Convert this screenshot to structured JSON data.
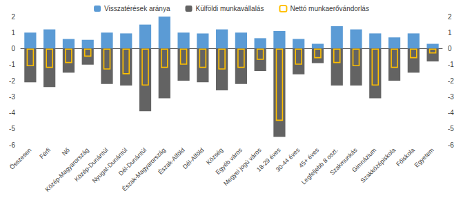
{
  "chart_data": {
    "type": "bar",
    "categories": [
      "Összesen",
      "Férfi",
      "Nő",
      "Közép-Magyarország",
      "Közép-Dunántúl",
      "Nyugat-Dunántúl",
      "Dél-Dunántúl",
      "Észak-Magyarország",
      "Észak-Alföld",
      "Dél-Alföld",
      "Község",
      "Egyéb város",
      "Megyei jogú város",
      "18-29 éves",
      "30-44 éves",
      "45+ éves",
      "Legfeljebb 8 oszt.",
      "Szakmunkás",
      "Gimnázium",
      "Szakközépiskola",
      "Főiskola",
      "Egyetem"
    ],
    "series": [
      {
        "name": "Visszatérések aránya",
        "color": "#5B9BD5",
        "values": [
          1.0,
          1.2,
          0.6,
          0.55,
          1.0,
          0.95,
          1.5,
          2.0,
          1.0,
          0.95,
          1.2,
          1.0,
          0.65,
          1.1,
          0.6,
          0.3,
          1.4,
          1.2,
          0.95,
          0.7,
          0.95,
          0.3
        ]
      },
      {
        "name": "Külföldi munkavállalás",
        "color": "#636363",
        "values": [
          -2.1,
          -2.4,
          -1.5,
          -1.0,
          -2.2,
          -2.3,
          -3.9,
          -3.1,
          -2.0,
          -2.1,
          -2.6,
          -2.2,
          -1.4,
          -5.5,
          -1.6,
          -0.9,
          -2.3,
          -2.3,
          -3.1,
          -2.0,
          -1.5,
          -0.8
        ]
      },
      {
        "name": "Nettó munkaerővándorlás",
        "color": "#FFC000",
        "line_style": "outline",
        "values": [
          -1.1,
          -1.2,
          -0.9,
          -0.5,
          -1.3,
          -1.6,
          -2.3,
          -1.2,
          -1.0,
          -1.2,
          -1.3,
          -1.2,
          -0.7,
          -4.5,
          -1.0,
          -0.6,
          -0.9,
          -1.1,
          -2.3,
          -1.2,
          -0.6,
          -0.3
        ]
      }
    ],
    "ylim": [
      -6,
      2
    ],
    "yticks": [
      -6,
      -5,
      -4,
      -3,
      -2,
      -1,
      0,
      1,
      2
    ],
    "grid": false,
    "legend": "top"
  }
}
